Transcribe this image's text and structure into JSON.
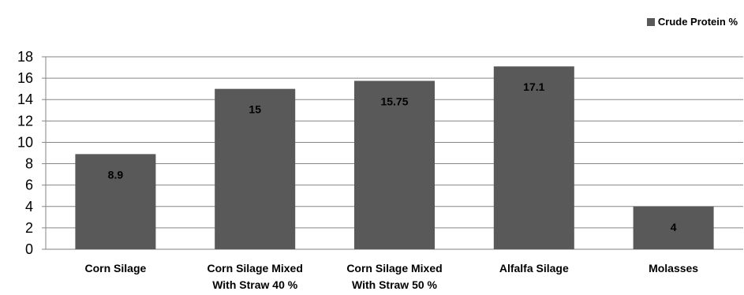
{
  "chart_data": {
    "type": "bar",
    "categories": [
      [
        "Corn Silage"
      ],
      [
        "Corn Silage Mixed",
        "With Straw 40 %"
      ],
      [
        "Corn Silage Mixed",
        "With Straw 50 %"
      ],
      [
        "Alfalfa Silage"
      ],
      [
        "Molasses"
      ]
    ],
    "series": [
      {
        "name": "Crude Protein %",
        "values": [
          8.9,
          15,
          15.75,
          17.1,
          4
        ],
        "color": "#595959"
      }
    ],
    "data_labels": [
      "8.9",
      "15",
      "15.75",
      "17.1",
      "4"
    ],
    "yticks": [
      "0",
      "2",
      "4",
      "6",
      "8",
      "10",
      "12",
      "14",
      "16",
      "18"
    ],
    "ylim": [
      0,
      18
    ],
    "grid": true,
    "legend_position": "top-right",
    "title": "",
    "xlabel": "",
    "ylabel": ""
  }
}
